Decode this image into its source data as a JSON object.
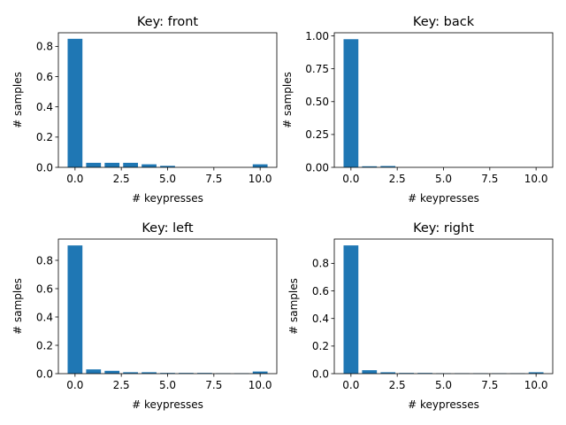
{
  "chart_data": [
    {
      "type": "bar",
      "title": "Key: front",
      "xlabel": "# keypresses",
      "ylabel": "# samples",
      "x": [
        0,
        1,
        2,
        3,
        4,
        5,
        6,
        7,
        8,
        9,
        10
      ],
      "values": [
        0.85,
        0.03,
        0.03,
        0.03,
        0.02,
        0.01,
        0.0,
        0.0,
        0.0,
        0.0,
        0.02
      ],
      "xlim": [
        -0.9,
        10.9
      ],
      "ylim": [
        0,
        0.89
      ],
      "xticks": [
        "0.0",
        "2.5",
        "5.0",
        "7.5",
        "10.0"
      ],
      "yticks": [
        "0.0",
        "0.2",
        "0.4",
        "0.6",
        "0.8"
      ],
      "bar_color": "#1f77b4",
      "grid": false
    },
    {
      "type": "bar",
      "title": "Key: back",
      "xlabel": "# keypresses",
      "ylabel": "# samples",
      "x": [
        0,
        1,
        2,
        3,
        4,
        5,
        6,
        7,
        8,
        9,
        10
      ],
      "values": [
        0.975,
        0.008,
        0.01,
        0.0,
        0.0,
        0.0,
        0.0,
        0.0,
        0.0,
        0.0,
        0.0
      ],
      "xlim": [
        -0.9,
        10.9
      ],
      "ylim": [
        0,
        1.024
      ],
      "xticks": [
        "0.0",
        "2.5",
        "5.0",
        "7.5",
        "10.0"
      ],
      "yticks": [
        "0.00",
        "0.25",
        "0.50",
        "0.75",
        "1.00"
      ],
      "bar_color": "#1f77b4",
      "grid": false
    },
    {
      "type": "bar",
      "title": "Key: left",
      "xlabel": "# keypresses",
      "ylabel": "# samples",
      "x": [
        0,
        1,
        2,
        3,
        4,
        5,
        6,
        7,
        8,
        9,
        10
      ],
      "values": [
        0.905,
        0.03,
        0.02,
        0.01,
        0.01,
        0.005,
        0.005,
        0.005,
        0.003,
        0.003,
        0.015
      ],
      "xlim": [
        -0.9,
        10.9
      ],
      "ylim": [
        0,
        0.95
      ],
      "xticks": [
        "0.0",
        "2.5",
        "5.0",
        "7.5",
        "10.0"
      ],
      "yticks": [
        "0.0",
        "0.2",
        "0.4",
        "0.6",
        "0.8"
      ],
      "bar_color": "#1f77b4",
      "grid": false
    },
    {
      "type": "bar",
      "title": "Key: right",
      "xlabel": "# keypresses",
      "ylabel": "# samples",
      "x": [
        0,
        1,
        2,
        3,
        4,
        5,
        6,
        7,
        8,
        9,
        10
      ],
      "values": [
        0.93,
        0.025,
        0.01,
        0.005,
        0.005,
        0.003,
        0.003,
        0.003,
        0.003,
        0.003,
        0.01
      ],
      "xlim": [
        -0.9,
        10.9
      ],
      "ylim": [
        0,
        0.976
      ],
      "xticks": [
        "0.0",
        "2.5",
        "5.0",
        "7.5",
        "10.0"
      ],
      "yticks": [
        "0.0",
        "0.2",
        "0.4",
        "0.6",
        "0.8"
      ],
      "bar_color": "#1f77b4",
      "grid": false
    }
  ]
}
